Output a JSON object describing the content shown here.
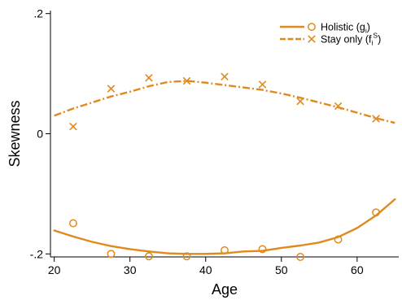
{
  "chart_data": {
    "type": "scatter",
    "xlabel": "Age",
    "ylabel": "Skewness",
    "xlim": [
      19.5,
      65.5
    ],
    "ylim": [
      -0.205,
      0.205
    ],
    "xticks": [
      20,
      30,
      40,
      50,
      60
    ],
    "xtick_labels": [
      "20",
      "30",
      "40",
      "50",
      "60"
    ],
    "yticks": [
      -0.2,
      0,
      0.2
    ],
    "ytick_labels": [
      "-.2",
      "0",
      ".2"
    ],
    "grid": false,
    "legend_position": "top-right",
    "color": "#e08a1e",
    "series": [
      {
        "name": "Holistic (g",
        "name_sub": "i",
        "name_suffix": ")",
        "marker": "circle",
        "line_style": "solid",
        "points": {
          "x": [
            22.5,
            27.5,
            32.5,
            37.5,
            42.5,
            47.5,
            52.5,
            57.5,
            62.5
          ],
          "y": [
            -0.149,
            -0.2,
            -0.204,
            -0.204,
            -0.194,
            -0.192,
            -0.205,
            -0.176,
            -0.131
          ]
        },
        "fit": {
          "x": [
            20,
            22.5,
            25,
            27.5,
            30,
            32.5,
            35,
            37.5,
            40,
            42.5,
            45,
            47.5,
            50,
            52.5,
            55,
            57.5,
            60,
            62.5,
            65
          ],
          "y": [
            -0.161,
            -0.171,
            -0.18,
            -0.187,
            -0.192,
            -0.196,
            -0.199,
            -0.2,
            -0.2,
            -0.199,
            -0.196,
            -0.195,
            -0.19,
            -0.186,
            -0.181,
            -0.172,
            -0.157,
            -0.136,
            -0.109
          ]
        }
      },
      {
        "name": "Stay only (f",
        "name_sub": "i",
        "name_sup": "S",
        "name_suffix": ")",
        "marker": "x",
        "line_style": "dashed",
        "points": {
          "x": [
            22.5,
            27.5,
            32.5,
            37.5,
            42.5,
            47.5,
            52.5,
            57.5,
            62.5
          ],
          "y": [
            0.012,
            0.075,
            0.093,
            0.088,
            0.095,
            0.082,
            0.054,
            0.046,
            0.025
          ]
        },
        "fit": {
          "x": [
            20,
            22.5,
            25,
            27.5,
            30,
            32.5,
            35,
            37.5,
            40,
            42.5,
            45,
            47.5,
            50,
            52.5,
            55,
            57.5,
            60,
            62.5,
            65
          ],
          "y": [
            0.03,
            0.042,
            0.052,
            0.062,
            0.07,
            0.079,
            0.086,
            0.088,
            0.085,
            0.081,
            0.077,
            0.073,
            0.067,
            0.06,
            0.052,
            0.044,
            0.035,
            0.026,
            0.018
          ]
        }
      }
    ]
  }
}
